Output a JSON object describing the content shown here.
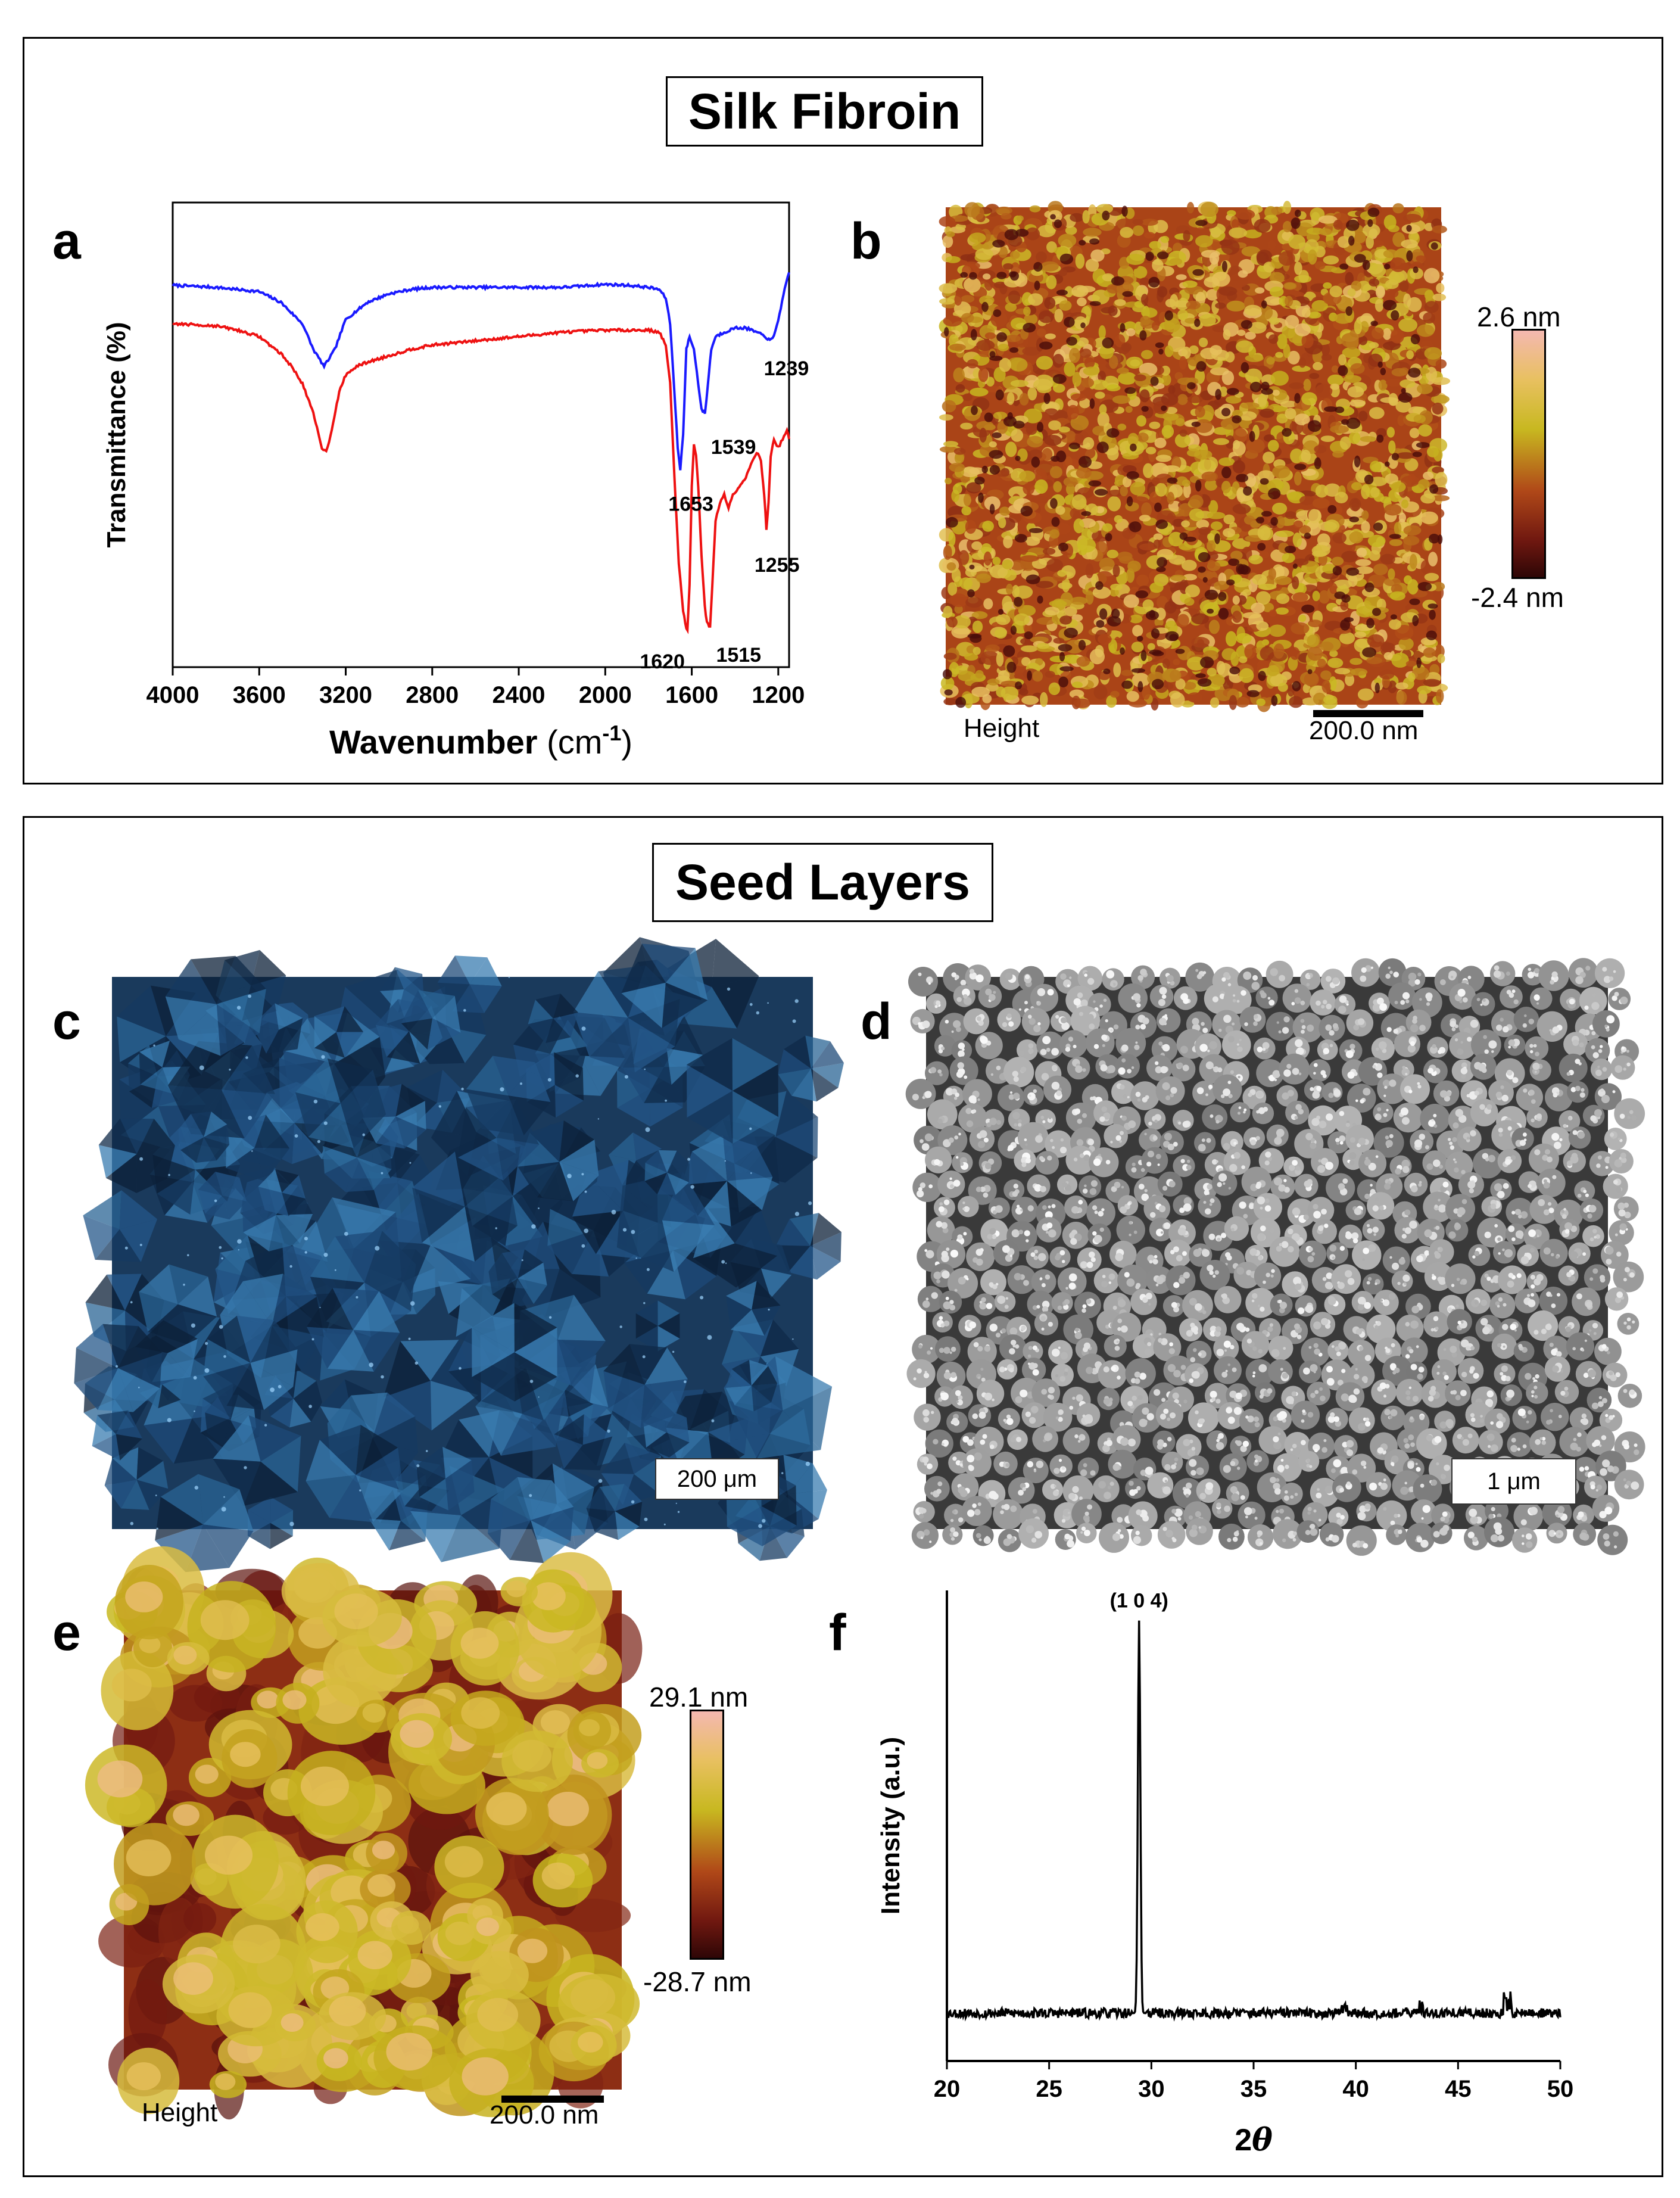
{
  "sections": [
    {
      "title": "Silk Fibroin"
    },
    {
      "title": "Seed Layers"
    }
  ],
  "panels": {
    "a": {
      "letter": "a",
      "chart_data": {
        "type": "line",
        "title": "",
        "xlabel": "Wavenumber",
        "xlabel_unit": "(cm",
        "xlabel_sup": "-1",
        "xlabel_close": ")",
        "ylabel": "Transmittance (%)",
        "xlim": [
          4000,
          1150
        ],
        "ylim": [
          0,
          100
        ],
        "x_ticks": [
          4000,
          3600,
          3200,
          2800,
          2400,
          2000,
          1600,
          1200
        ],
        "x_tick_labels": [
          "4000",
          "3600",
          "3200",
          "2800",
          "2400",
          "2000",
          "1600",
          "1200"
        ],
        "series": [
          {
            "color": "#1a1aff",
            "points": [
              [
                4000,
                85
              ],
              [
                3800,
                84.5
              ],
              [
                3600,
                83.5
              ],
              [
                3500,
                81
              ],
              [
                3400,
                76
              ],
              [
                3350,
                70
              ],
              [
                3300,
                66
              ],
              [
                3250,
                70
              ],
              [
                3200,
                77
              ],
              [
                3100,
                81
              ],
              [
                3000,
                83
              ],
              [
                2900,
                84
              ],
              [
                2800,
                84.5
              ],
              [
                2400,
                84.5
              ],
              [
                2200,
                84.5
              ],
              [
                2000,
                85.2
              ],
              [
                1900,
                85
              ],
              [
                1800,
                84.5
              ],
              [
                1750,
                84
              ],
              [
                1720,
                82
              ],
              [
                1700,
                76
              ],
              [
                1680,
                60
              ],
              [
                1665,
                47
              ],
              [
                1653,
                42
              ],
              [
                1640,
                50
              ],
              [
                1625,
                70
              ],
              [
                1610,
                73
              ],
              [
                1590,
                70
              ],
              [
                1570,
                62
              ],
              [
                1555,
                56
              ],
              [
                1539,
                55
              ],
              [
                1525,
                62
              ],
              [
                1510,
                70
              ],
              [
                1490,
                73
              ],
              [
                1450,
                74
              ],
              [
                1400,
                75
              ],
              [
                1350,
                75
              ],
              [
                1300,
                74
              ],
              [
                1260,
                73
              ],
              [
                1239,
                72
              ],
              [
                1220,
                73
              ],
              [
                1200,
                77
              ],
              [
                1170,
                84
              ],
              [
                1150,
                88
              ]
            ]
          },
          {
            "color": "#ee1111",
            "points": [
              [
                4000,
                76
              ],
              [
                3800,
                75.5
              ],
              [
                3700,
                74.5
              ],
              [
                3600,
                73
              ],
              [
                3500,
                69
              ],
              [
                3450,
                66
              ],
              [
                3400,
                62
              ],
              [
                3350,
                55
              ],
              [
                3310,
                47
              ],
              [
                3290,
                46
              ],
              [
                3270,
                50
              ],
              [
                3230,
                60
              ],
              [
                3200,
                64
              ],
              [
                3150,
                66
              ],
              [
                3100,
                67
              ],
              [
                3000,
                68.5
              ],
              [
                2900,
                70
              ],
              [
                2800,
                71
              ],
              [
                2600,
                72
              ],
              [
                2400,
                73
              ],
              [
                2200,
                74
              ],
              [
                2000,
                74.5
              ],
              [
                1800,
                74.5
              ],
              [
                1750,
                74
              ],
              [
                1720,
                71
              ],
              [
                1700,
                62
              ],
              [
                1680,
                40
              ],
              [
                1660,
                20
              ],
              [
                1640,
                9
              ],
              [
                1630,
                6
              ],
              [
                1620,
                4
              ],
              [
                1610,
                15
              ],
              [
                1600,
                38
              ],
              [
                1590,
                48
              ],
              [
                1580,
                45
              ],
              [
                1570,
                38
              ],
              [
                1555,
                22
              ],
              [
                1540,
                10
              ],
              [
                1530,
                6
              ],
              [
                1515,
                5
              ],
              [
                1505,
                15
              ],
              [
                1490,
                30
              ],
              [
                1470,
                34
              ],
              [
                1450,
                36
              ],
              [
                1430,
                33
              ],
              [
                1410,
                36
              ],
              [
                1380,
                38
              ],
              [
                1350,
                40
              ],
              [
                1320,
                44
              ],
              [
                1300,
                46
              ],
              [
                1280,
                44
              ],
              [
                1265,
                36
              ],
              [
                1255,
                28
              ],
              [
                1245,
                34
              ],
              [
                1235,
                45
              ],
              [
                1220,
                49
              ],
              [
                1200,
                47
              ],
              [
                1180,
                49
              ],
              [
                1160,
                51
              ],
              [
                1150,
                49
              ]
            ]
          }
        ],
        "annotations": [
          {
            "text": "1239",
            "x": 1239,
            "series": 0
          },
          {
            "text": "1539",
            "x": 1539,
            "series": 0
          },
          {
            "text": "1653",
            "x": 1653,
            "series": 0
          },
          {
            "text": "1255",
            "x": 1255,
            "series": 1
          },
          {
            "text": "1620",
            "x": 1620,
            "series": 1
          },
          {
            "text": "1515",
            "x": 1515,
            "series": 1
          }
        ],
        "grid": false
      }
    },
    "b": {
      "letter": "b",
      "image_label": "Height",
      "scale_label": "200.0 nm",
      "cbar_max": "2.6 nm",
      "cbar_min": "-2.4 nm"
    },
    "c": {
      "letter": "c",
      "scale_label": "200 μm"
    },
    "d": {
      "letter": "d",
      "scale_label": "1 μm"
    },
    "e": {
      "letter": "e",
      "image_label": "Height",
      "scale_label": "200.0 nm",
      "cbar_max": "29.1 nm",
      "cbar_min": "-28.7 nm"
    },
    "f": {
      "letter": "f",
      "chart_data": {
        "type": "line",
        "title": "",
        "xlabel": "2",
        "xlabel_theta": "θ",
        "ylabel": "Intensity (a.u.)",
        "xlim": [
          20,
          50
        ],
        "ylim": [
          0,
          100
        ],
        "x_ticks": [
          20,
          25,
          30,
          35,
          40,
          45,
          50
        ],
        "x_tick_labels": [
          "20",
          "25",
          "30",
          "35",
          "40",
          "45",
          "50"
        ],
        "peak_label": "(1 0 4)",
        "peak_x": 29.4,
        "series": [
          {
            "color": "#000000",
            "points": [
              [
                29.4,
                100
              ]
            ]
          }
        ],
        "grid": false
      }
    }
  },
  "colors": {
    "afm_high": "#f0a8a0",
    "afm_mid": "#c8b020",
    "afm_low": "#3a0808",
    "optical_bg": "#1a3a5c",
    "sem_bg": "#5a5a5a"
  }
}
